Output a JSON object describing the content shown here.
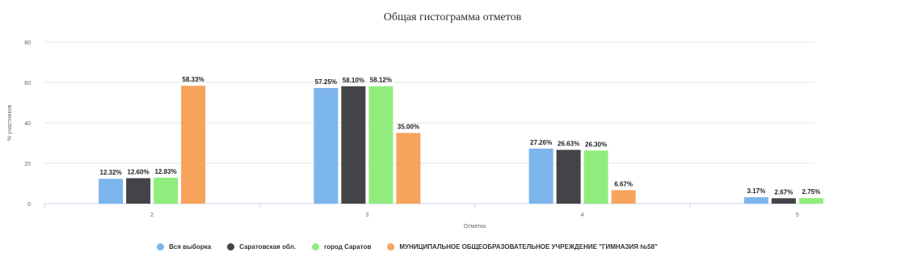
{
  "chart_data": {
    "type": "bar",
    "title": "Общая гистограмма отметов",
    "xlabel": "Отметка",
    "ylabel": "% участников",
    "ylim": [
      0,
      80
    ],
    "yticks": [
      0,
      20,
      40,
      60,
      80
    ],
    "categories": [
      "2",
      "3",
      "4",
      "5"
    ],
    "series": [
      {
        "name": "Вся выборка",
        "color": "#7cb5ec",
        "values": [
          12.32,
          57.25,
          27.26,
          3.17
        ],
        "labels": [
          "12.32%",
          "57.25%",
          "27.26%",
          "3.17%"
        ]
      },
      {
        "name": "Саратовская обл.",
        "color": "#434348",
        "values": [
          12.6,
          58.1,
          26.63,
          2.67
        ],
        "labels": [
          "12.60%",
          "58.10%",
          "26.63%",
          "2.67%"
        ]
      },
      {
        "name": "город Саратов",
        "color": "#90ed7d",
        "values": [
          12.83,
          58.12,
          26.3,
          2.75
        ],
        "labels": [
          "12.83%",
          "58.12%",
          "26.30%",
          "2.75%"
        ]
      },
      {
        "name": "МУНИЦИПАЛЬНОЕ ОБЩЕОБРАЗОВАТЕЛЬНОЕ УЧРЕЖДЕНИЕ \"ГИМНАЗИЯ №58\"",
        "color": "#f7a35c",
        "values": [
          58.33,
          35.0,
          6.67,
          0
        ],
        "labels": [
          "58.33%",
          "35.00%",
          "6.67%",
          ""
        ]
      }
    ],
    "grid": true,
    "legend": "bottom"
  }
}
